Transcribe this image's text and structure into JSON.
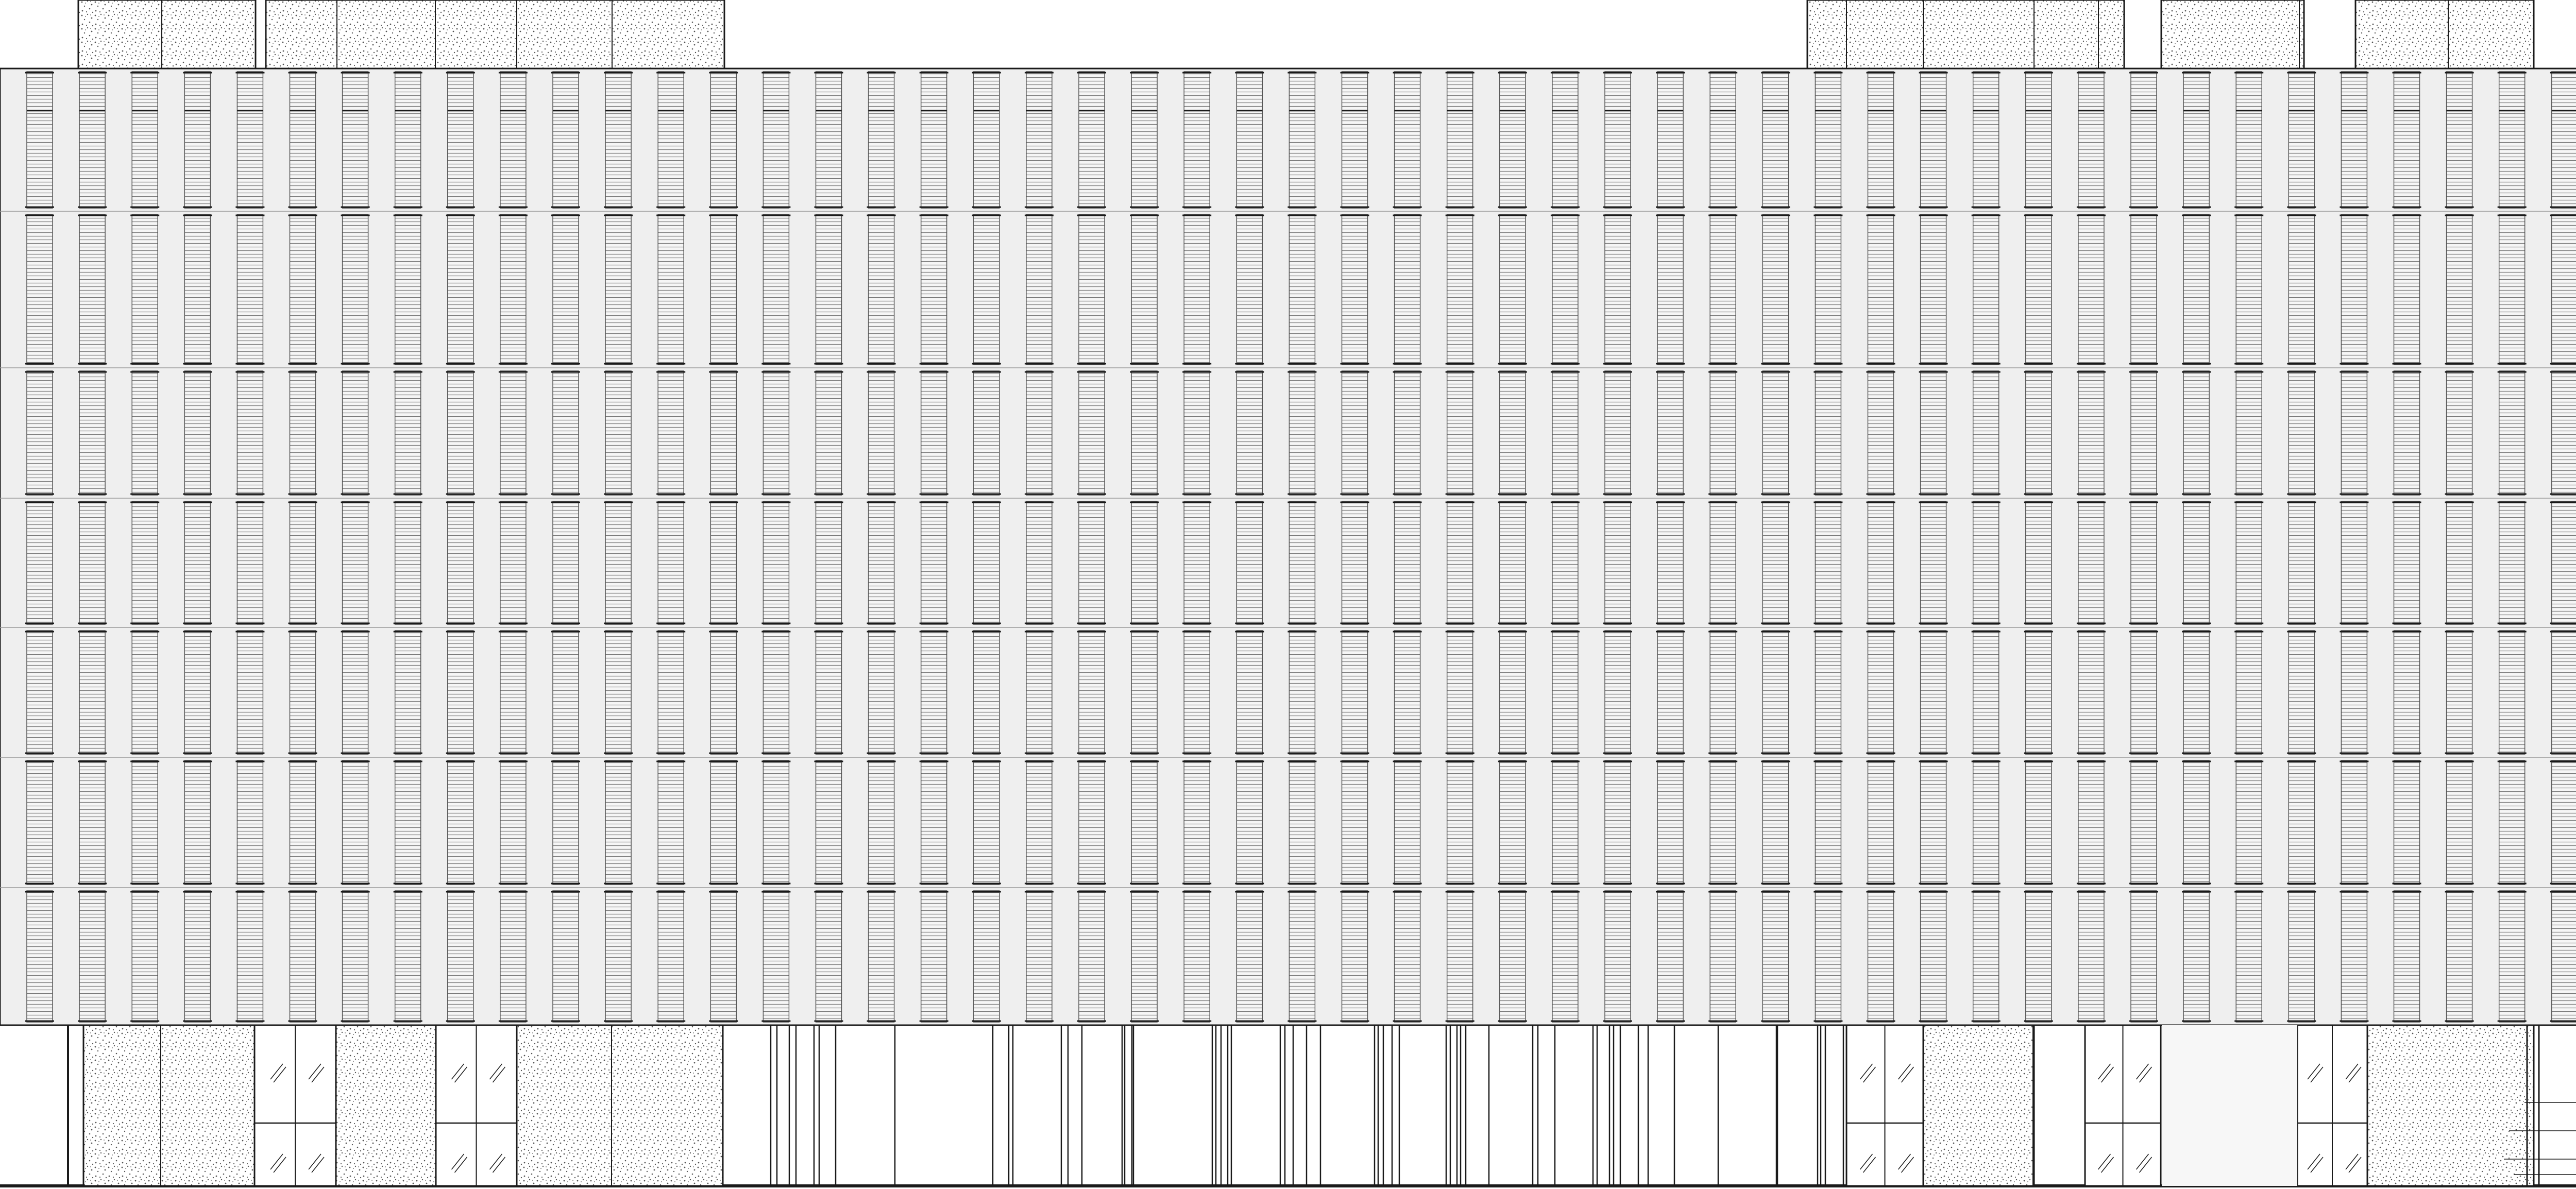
{
  "drawing": {
    "title": "",
    "kind": "building-elevation",
    "colors": {
      "background": "#ffffff",
      "line": "#1a1a1a",
      "facade_panel": "#efefef",
      "louver_hatch": "#7a7a7a",
      "stipple": "#555555"
    },
    "facade": {
      "column_count": 49,
      "floor_bands": 7,
      "louver_slat_count": 48
    },
    "roof_blocks": [
      {
        "name": "rooftop-block-1"
      },
      {
        "name": "rooftop-block-2"
      },
      {
        "name": "rooftop-block-3"
      },
      {
        "name": "rooftop-block-4"
      },
      {
        "name": "rooftop-block-5"
      }
    ],
    "ground_floor": {
      "walls": [
        "concrete-wall",
        "glass-door",
        "concrete-wall",
        "glass-door",
        "concrete-wall",
        "column-screen",
        "glass-door",
        "concrete-wall",
        "glass-door",
        "entrance-void",
        "glass-door",
        "concrete-wall",
        "stair-rail"
      ]
    }
  }
}
